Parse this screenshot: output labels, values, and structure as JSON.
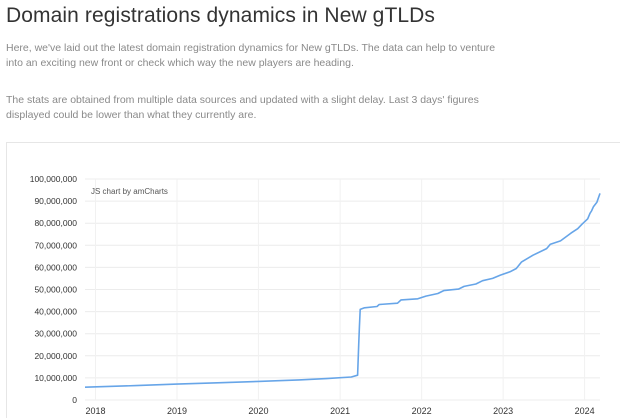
{
  "header": {
    "title": "Domain registrations dynamics in New gTLDs"
  },
  "intro": {
    "paragraph1": "Here, we've laid out the latest domain registration dynamics for New gTLDs. The data can help to venture into an exciting new front or check which way the new players are heading.",
    "paragraph2": "The stats are obtained from multiple data sources and updated with a slight delay. Last 3 days' figures displayed could be lower than what they currently are."
  },
  "chart_credit": "JS chart by amCharts",
  "chart_data": {
    "type": "line",
    "title": "",
    "xlabel": "",
    "ylabel": "",
    "xlim": [
      "2017-11-15",
      "2024-03-10"
    ],
    "ylim": [
      0,
      100000000
    ],
    "y_ticks": [
      0,
      10000000,
      20000000,
      30000000,
      40000000,
      50000000,
      60000000,
      70000000,
      80000000,
      90000000,
      100000000
    ],
    "y_tick_labels": [
      "0",
      "10,000,000",
      "20,000,000",
      "30,000,000",
      "40,000,000",
      "50,000,000",
      "60,000,000",
      "70,000,000",
      "80,000,000",
      "90,000,000",
      "100,000,000"
    ],
    "x_ticks": [
      "2018-01-01",
      "2019-01-01",
      "2020-01-01",
      "2021-01-01",
      "2022-01-01",
      "2023-01-01",
      "2024-01-01"
    ],
    "x_tick_labels": [
      "2018",
      "2019",
      "2020",
      "2021",
      "2022",
      "2023",
      "2024"
    ],
    "grid": true,
    "line_color": "#67a5e8",
    "series": [
      {
        "points": [
          [
            "2017-11-15",
            5800000
          ],
          [
            "2018-07-01",
            6500000
          ],
          [
            "2019-01-01",
            7200000
          ],
          [
            "2019-07-01",
            7800000
          ],
          [
            "2020-01-01",
            8400000
          ],
          [
            "2020-07-01",
            9100000
          ],
          [
            "2020-11-01",
            9700000
          ],
          [
            "2021-02-20",
            10400000
          ],
          [
            "2021-03-20",
            11200000
          ],
          [
            "2021-03-25",
            25000000
          ],
          [
            "2021-03-28",
            33000000
          ],
          [
            "2021-04-01",
            41000000
          ],
          [
            "2021-04-20",
            41700000
          ],
          [
            "2021-06-15",
            42300000
          ],
          [
            "2021-06-25",
            43200000
          ],
          [
            "2021-09-15",
            43800000
          ],
          [
            "2021-10-01",
            45300000
          ],
          [
            "2021-12-15",
            45800000
          ],
          [
            "2022-01-20",
            47000000
          ],
          [
            "2022-03-15",
            48200000
          ],
          [
            "2022-04-10",
            49500000
          ],
          [
            "2022-06-15",
            50200000
          ],
          [
            "2022-07-10",
            51400000
          ],
          [
            "2022-09-01",
            52500000
          ],
          [
            "2022-10-01",
            54000000
          ],
          [
            "2022-11-15",
            55000000
          ],
          [
            "2022-12-20",
            56500000
          ],
          [
            "2023-02-01",
            58000000
          ],
          [
            "2023-03-01",
            59500000
          ],
          [
            "2023-03-25",
            62500000
          ],
          [
            "2023-05-15",
            65500000
          ],
          [
            "2023-07-15",
            68500000
          ],
          [
            "2023-08-01",
            70500000
          ],
          [
            "2023-09-15",
            72000000
          ],
          [
            "2023-11-01",
            75500000
          ],
          [
            "2023-12-01",
            77500000
          ],
          [
            "2023-12-20",
            79500000
          ],
          [
            "2024-01-15",
            82000000
          ],
          [
            "2024-01-25",
            84500000
          ],
          [
            "2024-02-01",
            85500000
          ],
          [
            "2024-02-10",
            87500000
          ],
          [
            "2024-02-25",
            89500000
          ],
          [
            "2024-03-10",
            93500000
          ]
        ]
      }
    ]
  }
}
